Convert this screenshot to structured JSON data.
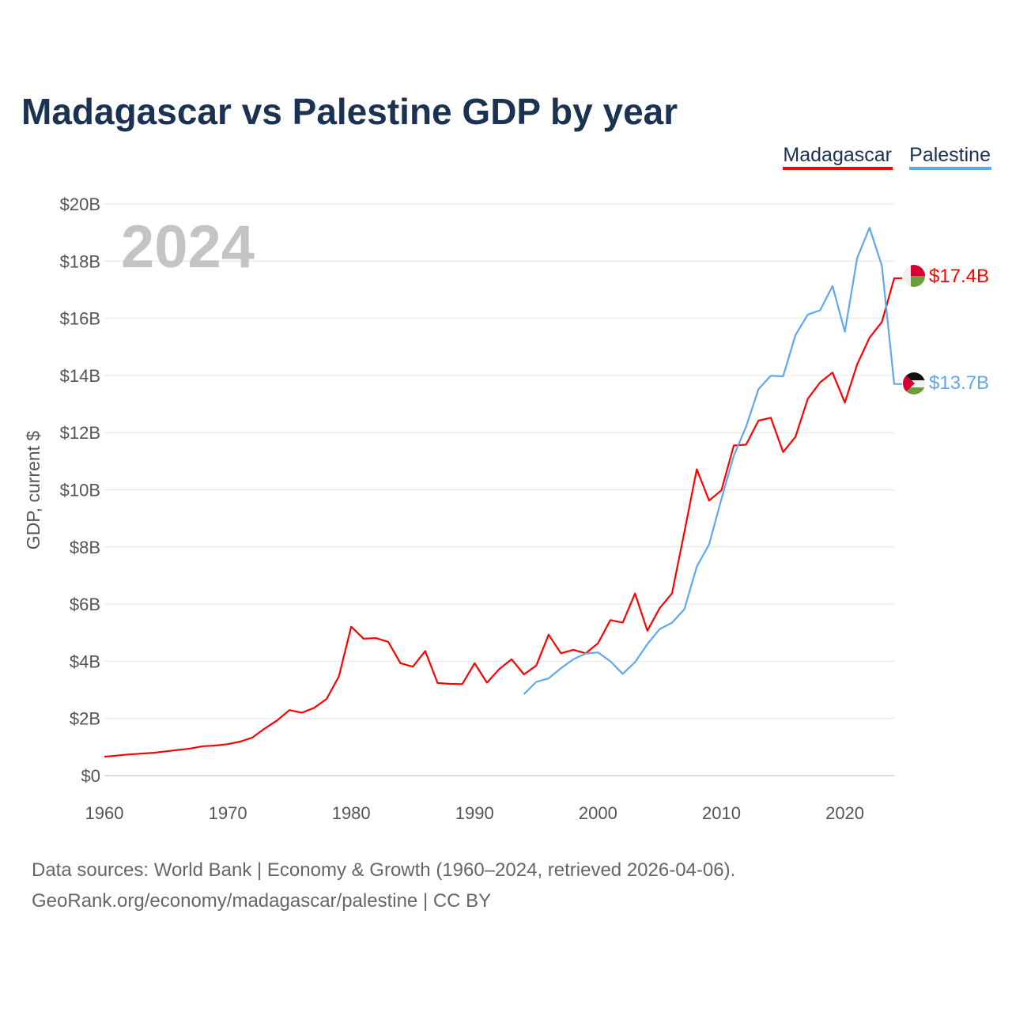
{
  "chart_data": {
    "type": "line",
    "title": "Madagascar vs Palestine GDP by year",
    "ylabel": "GDP, current $",
    "xlabel": "",
    "year_label": "2024",
    "xlim": [
      1960,
      2024
    ],
    "ylim": [
      0,
      20
    ],
    "y_unit": "billion USD",
    "yticks": [
      0,
      2,
      4,
      6,
      8,
      10,
      12,
      14,
      16,
      18,
      20
    ],
    "ytick_labels": [
      "$0",
      "$2B",
      "$4B",
      "$6B",
      "$8B",
      "$10B",
      "$12B",
      "$14B",
      "$16B",
      "$18B",
      "$20B"
    ],
    "xticks": [
      1960,
      1970,
      1980,
      1990,
      2000,
      2010,
      2020
    ],
    "xtick_labels": [
      "1960",
      "1970",
      "1980",
      "1990",
      "2000",
      "2010",
      "2020"
    ],
    "grid": true,
    "legend_position": "top-right",
    "series": [
      {
        "name": "Madagascar",
        "color": "#ff0000",
        "end_label": "$17.4B",
        "x_start": 1960,
        "values": [
          0.66,
          0.7,
          0.74,
          0.77,
          0.8,
          0.85,
          0.9,
          0.95,
          1.03,
          1.05,
          1.1,
          1.19,
          1.33,
          1.65,
          1.93,
          2.29,
          2.2,
          2.37,
          2.68,
          3.47,
          5.21,
          4.79,
          4.81,
          4.68,
          3.93,
          3.81,
          4.36,
          3.24,
          3.21,
          3.2,
          3.93,
          3.25,
          3.73,
          4.07,
          3.54,
          3.85,
          4.93,
          4.28,
          4.4,
          4.28,
          4.63,
          5.44,
          5.35,
          6.37,
          5.07,
          5.86,
          6.38,
          8.52,
          10.72,
          9.62,
          9.98,
          11.55,
          11.58,
          12.42,
          12.52,
          11.32,
          11.85,
          13.18,
          13.76,
          14.1,
          13.05,
          14.39,
          15.32,
          15.87,
          17.4
        ]
      },
      {
        "name": "Palestine",
        "color": "#5ea8ec",
        "end_label": "$13.7B",
        "x_start": 1994,
        "values": [
          2.85,
          3.28,
          3.4,
          3.76,
          4.07,
          4.27,
          4.31,
          4.0,
          3.56,
          3.97,
          4.6,
          5.13,
          5.35,
          5.82,
          7.31,
          8.09,
          9.68,
          11.19,
          12.21,
          13.52,
          13.99,
          13.97,
          15.41,
          16.13,
          16.28,
          17.13,
          15.53,
          18.11,
          19.17,
          17.84,
          13.7
        ]
      }
    ]
  },
  "footer": {
    "line1": "Data sources: World Bank | Economy & Growth (1960–2024, retrieved 2026-04-06).",
    "line2": "GeoRank.org/economy/madagascar/palestine | CC BY"
  },
  "icons": {
    "madagascar": "madagascar-flag-icon",
    "palestine": "palestine-flag-icon"
  }
}
